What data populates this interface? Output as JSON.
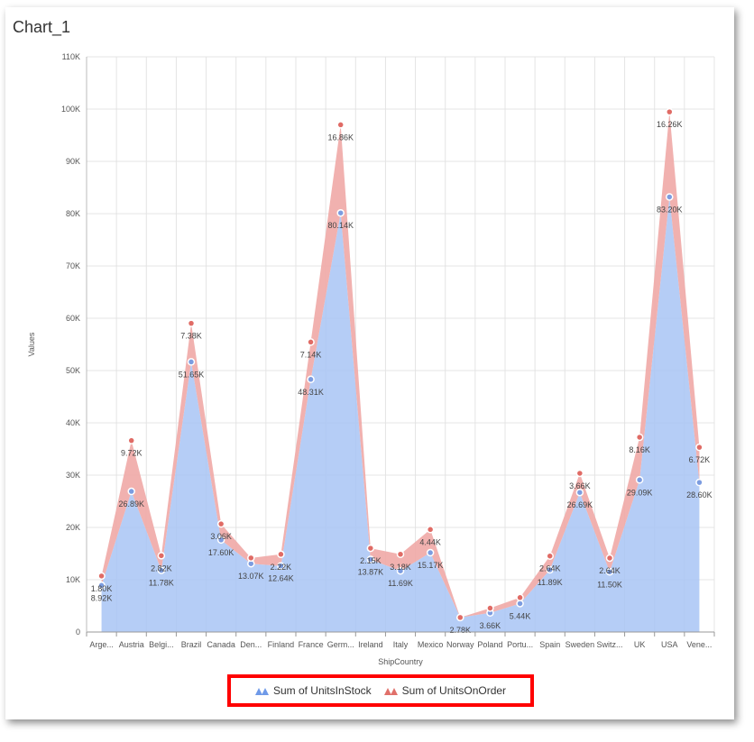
{
  "title": "Chart_1",
  "chart_data": {
    "type": "area",
    "xlabel": "ShipCountry",
    "ylabel": "Values",
    "ylim": [
      0,
      110000
    ],
    "yticks": [
      "0",
      "10K",
      "20K",
      "30K",
      "40K",
      "50K",
      "60K",
      "70K",
      "80K",
      "90K",
      "100K",
      "110K"
    ],
    "categories": [
      "Arge...",
      "Austria",
      "Belgi...",
      "Brazil",
      "Canada",
      "Den...",
      "Finland",
      "France",
      "Germ...",
      "Ireland",
      "Italy",
      "Mexico",
      "Norway",
      "Poland",
      "Portu...",
      "Spain",
      "Sweden",
      "Switz...",
      "UK",
      "USA",
      "Vene..."
    ],
    "stacked": true,
    "grid": true,
    "legend_position": "bottom",
    "series": [
      {
        "name": "Sum of UnitsInStock",
        "color": "#a8c4f5",
        "values": [
          8920,
          26890,
          11780,
          51650,
          17600,
          13070,
          12640,
          48310,
          80140,
          13870,
          11690,
          15170,
          2780,
          3660,
          5440,
          11890,
          26690,
          11500,
          29090,
          83200,
          28600
        ],
        "labels": [
          "8.92K",
          "26.89K",
          "11.78K",
          "51.65K",
          "17.60K",
          "13.07K",
          "12.64K",
          "48.31K",
          "80.14K",
          "13.87K",
          "11.69K",
          "15.17K",
          "2.78K",
          "3.66K",
          "5.44K",
          "11.89K",
          "26.69K",
          "11.50K",
          "29.09K",
          "83.20K",
          "28.60K"
        ]
      },
      {
        "name": "Sum of UnitsOnOrder",
        "color": "#f0a9a6",
        "values": [
          1800,
          9720,
          2820,
          7380,
          3060,
          1100,
          2220,
          7140,
          16860,
          2150,
          3180,
          4440,
          0,
          900,
          1150,
          2640,
          3660,
          2640,
          8160,
          16260,
          6720
        ],
        "labels": [
          "1.80K",
          "9.72K",
          "2.82K",
          "7.38K",
          "3.06K",
          "",
          "2.22K",
          "7.14K",
          "16.86K",
          "2.15K",
          "3.18K",
          "4.44K",
          "",
          "",
          "",
          "2.64K",
          "3.66K",
          "2.64K",
          "8.16K",
          "16.26K",
          "6.72K"
        ]
      }
    ]
  },
  "legend": {
    "items": [
      {
        "name": "Sum of UnitsInStock",
        "color": "#6f9ae8"
      },
      {
        "name": "Sum of UnitsOnOrder",
        "color": "#e0706a"
      }
    ]
  }
}
